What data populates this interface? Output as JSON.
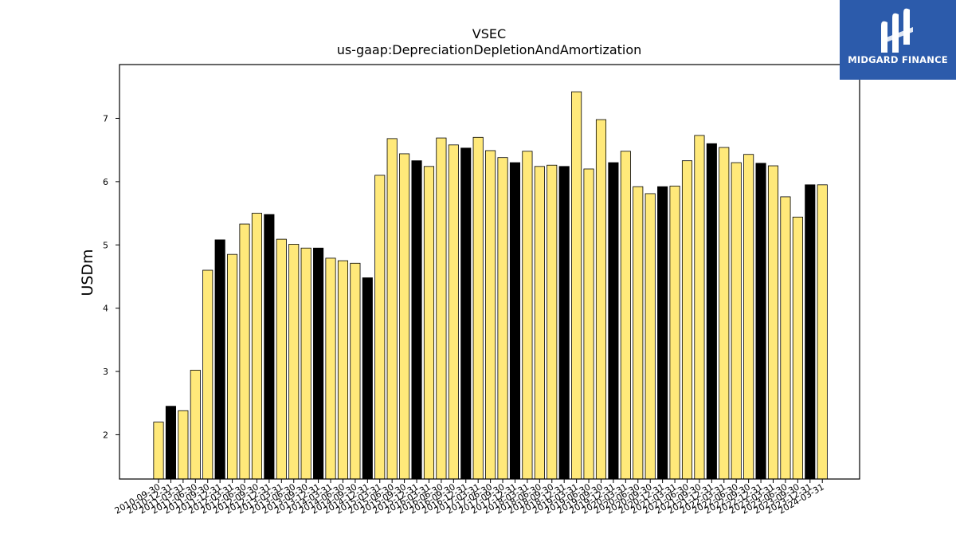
{
  "logo": {
    "brand": "MIDGARD FINANCE",
    "icon": "midgard-logo-icon"
  },
  "colors": {
    "highlight": "#ffe97a",
    "dark": "#000000",
    "edge": "#000000",
    "logo_bg": "#2c5bab"
  },
  "chart_data": {
    "type": "bar",
    "title": "VSEC",
    "subtitle": "us-gaap:DepreciationDepletionAndAmortization",
    "xlabel": "",
    "ylabel": "USDm",
    "ylim": [
      1.3,
      7.85
    ],
    "yticks": [
      2,
      3,
      4,
      5,
      6,
      7
    ],
    "grid": false,
    "categories": [
      "2010-09-30",
      "2010-12-31",
      "2011-03-31",
      "2011-06-30",
      "2011-09-30",
      "2011-12-31",
      "2012-03-31",
      "2012-06-30",
      "2012-09-30",
      "2012-12-31",
      "2013-03-31",
      "2013-06-30",
      "2013-09-30",
      "2013-12-31",
      "2014-03-31",
      "2014-06-30",
      "2014-09-30",
      "2014-12-31",
      "2015-03-31",
      "2015-06-30",
      "2015-09-30",
      "2015-12-31",
      "2016-03-31",
      "2016-06-30",
      "2016-09-30",
      "2016-12-31",
      "2017-03-31",
      "2017-06-30",
      "2017-09-30",
      "2017-12-31",
      "2018-03-31",
      "2018-06-30",
      "2018-09-30",
      "2018-12-31",
      "2019-03-31",
      "2019-06-30",
      "2019-09-30",
      "2019-12-31",
      "2020-03-31",
      "2020-06-30",
      "2020-09-30",
      "2020-12-31",
      "2021-03-31",
      "2021-06-30",
      "2021-09-30",
      "2021-12-31",
      "2022-03-31",
      "2022-06-30",
      "2022-09-30",
      "2022-12-31",
      "2023-03-31",
      "2023-06-30",
      "2023-09-30",
      "2023-12-31",
      "2024-03-31"
    ],
    "values": [
      2.2,
      2.45,
      2.38,
      3.02,
      4.6,
      5.08,
      4.85,
      5.33,
      5.5,
      5.48,
      5.09,
      5.01,
      4.95,
      4.95,
      4.79,
      4.75,
      4.71,
      4.48,
      6.1,
      6.68,
      6.44,
      6.33,
      6.24,
      6.69,
      6.58,
      6.53,
      6.7,
      6.49,
      6.38,
      6.3,
      6.48,
      6.24,
      6.26,
      6.24,
      7.42,
      6.2,
      6.98,
      6.3,
      6.48,
      5.92,
      5.81,
      5.92,
      5.93,
      6.33,
      6.73,
      6.6,
      6.54,
      6.3,
      6.43,
      6.29,
      6.25,
      5.76,
      5.44,
      5.95,
      5.95
    ],
    "dark_bars": [
      "2010-12-31",
      "2011-12-31",
      "2012-12-31",
      "2013-12-31",
      "2014-12-31",
      "2015-12-31",
      "2016-12-31",
      "2017-12-31",
      "2018-12-31",
      "2019-12-31",
      "2020-12-31",
      "2021-12-31",
      "2022-12-31",
      "2023-12-31"
    ]
  }
}
